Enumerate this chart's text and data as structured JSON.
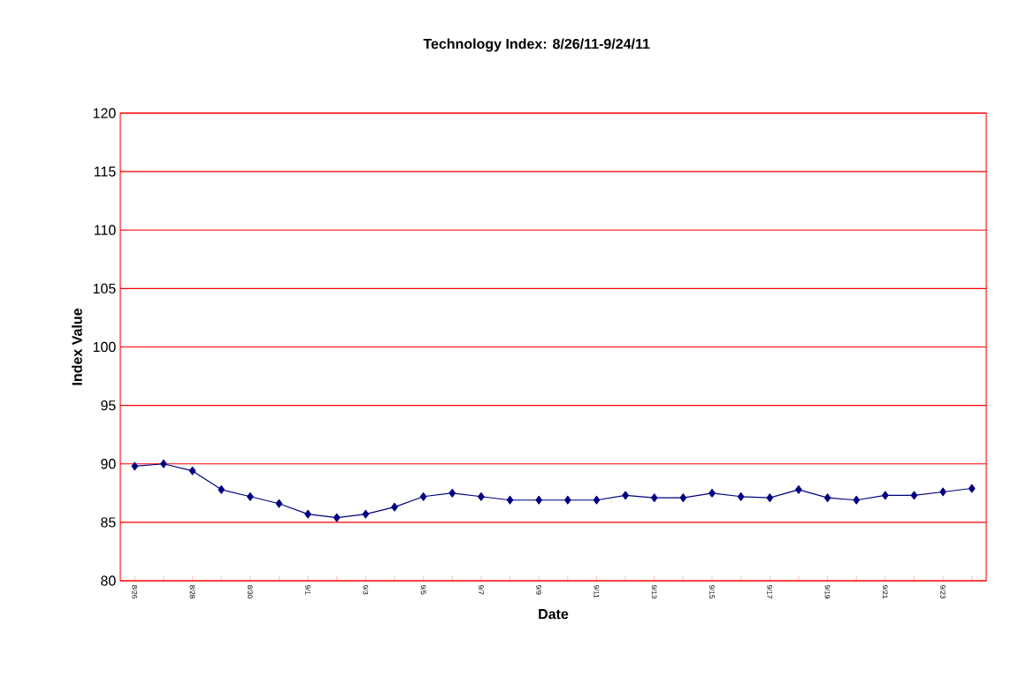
{
  "chart_data": {
    "type": "line",
    "title": "Technology Index: 8/26/11-9/24/11",
    "xlabel": "Date",
    "ylabel": "Index Value",
    "categories": [
      "8/26",
      null,
      "8/28",
      null,
      "8/30",
      null,
      "9/1",
      null,
      "9/3",
      null,
      "9/5",
      null,
      "9/7",
      null,
      "9/9",
      null,
      "9/11",
      null,
      "9/13",
      null,
      "9/15",
      null,
      "9/17",
      null,
      "9/19",
      null,
      "9/21",
      null,
      "9/23",
      null
    ],
    "series": [
      {
        "color": "#000080",
        "values": [
          89.8,
          90.0,
          89.4,
          87.8,
          87.2,
          86.6,
          85.7,
          85.4,
          85.7,
          86.3,
          87.2,
          87.5,
          87.2,
          86.9,
          86.9,
          86.9,
          86.9,
          87.3,
          87.1,
          87.1,
          87.5,
          87.2,
          87.1,
          87.8,
          87.1,
          86.9,
          87.3,
          87.3,
          87.6,
          87.9
        ]
      }
    ],
    "ylim": [
      80,
      120
    ],
    "yticks": [
      80,
      85,
      90,
      95,
      100,
      105,
      110,
      115,
      120
    ],
    "grid": "y",
    "marker": "diamond",
    "line_style": "solid"
  }
}
